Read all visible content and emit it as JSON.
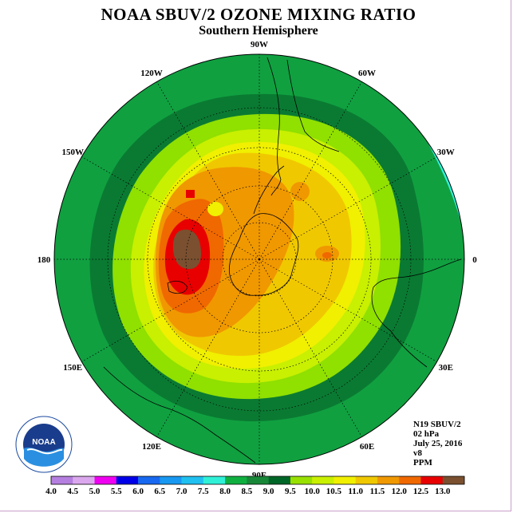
{
  "title": "NOAA SBUV/2 OZONE MIXING RATIO",
  "subtitle": "Southern Hemisphere",
  "info": {
    "satellite": "N19 SBUV/2",
    "pressure": "02 hPa",
    "date": "July 25, 2016",
    "version": "v8",
    "units": "PPM"
  },
  "logo_text": "NOAA",
  "map": {
    "projection": "south-polar-stereographic",
    "longitude_labels": [
      {
        "text": "90W",
        "lon": -90
      },
      {
        "text": "60W",
        "lon": -60
      },
      {
        "text": "30W",
        "lon": -30
      },
      {
        "text": "0",
        "lon": 0
      },
      {
        "text": "30E",
        "lon": 30
      },
      {
        "text": "60E",
        "lon": 60
      },
      {
        "text": "90E",
        "lon": 90
      },
      {
        "text": "120E",
        "lon": 120
      },
      {
        "text": "150E",
        "lon": 150
      },
      {
        "text": "180",
        "lon": 180
      },
      {
        "text": "150W",
        "lon": -150
      },
      {
        "text": "120W",
        "lon": -120
      }
    ]
  },
  "legend": {
    "ticks": [
      "4.0",
      "4.5",
      "5.0",
      "5.5",
      "6.0",
      "6.5",
      "7.0",
      "7.5",
      "8.0",
      "8.5",
      "9.0",
      "9.5",
      "10.0",
      "10.5",
      "11.0",
      "11.5",
      "12.0",
      "12.5",
      "13.0"
    ],
    "colors": [
      "#b57fe0",
      "#dba8ee",
      "#f000f0",
      "#0000e8",
      "#1868f0",
      "#1898f0",
      "#20c0f0",
      "#30f0d8",
      "#10b040",
      "#188838",
      "#006628",
      "#98e000",
      "#c8f000",
      "#f0f000",
      "#f0c800",
      "#f09800",
      "#f06800",
      "#e80000",
      "#7a5030"
    ]
  }
}
